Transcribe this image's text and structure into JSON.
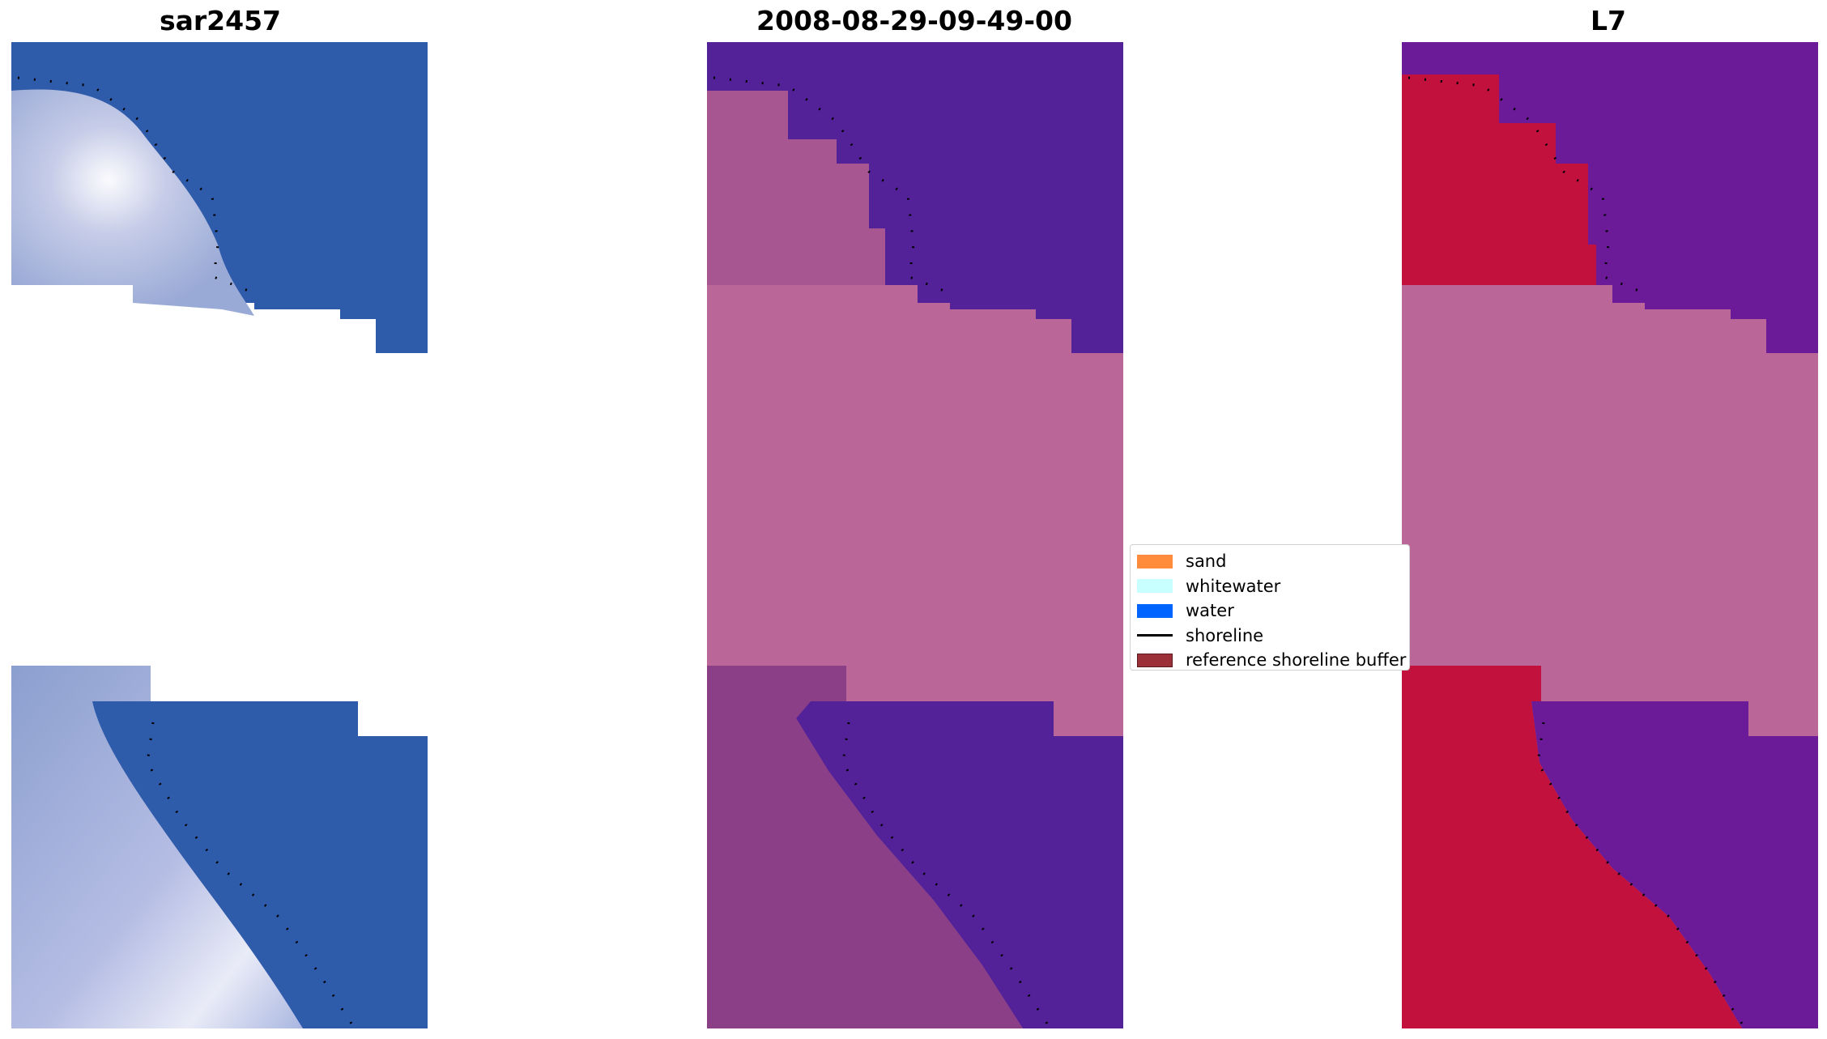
{
  "panels": [
    {
      "title": "sar2457"
    },
    {
      "title": "2008-08-29-09-49-00"
    },
    {
      "title": "L7"
    }
  ],
  "legend": {
    "placement": "center",
    "items": [
      {
        "label": "sand",
        "color": "#ff8c3c",
        "kind": "patch"
      },
      {
        "label": "whitewater",
        "color": "#c8ffff",
        "kind": "patch"
      },
      {
        "label": "water",
        "color": "#0064ff",
        "kind": "patch"
      },
      {
        "label": "shoreline",
        "color": "#000000",
        "kind": "line"
      },
      {
        "label": "reference shoreline buffer",
        "color": "#9b3039",
        "kind": "patch"
      }
    ]
  },
  "colors": {
    "rgb_water": "#2f5bab",
    "rgb_surf": "#e8ecf8",
    "classified_water": "#532198",
    "classified_land": "#8a3f86",
    "masked_fill": "#bb6698",
    "ndwi_water": "#6b1a98",
    "ndwi_land": "#c3113e"
  }
}
